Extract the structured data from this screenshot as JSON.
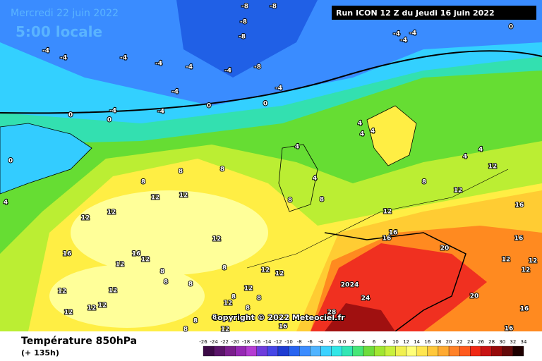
{
  "header": {
    "date": "Mercredi 22 juin 2022",
    "time": "5:00 locale",
    "run": "Run ICON 12 Z du Jeudi 16 juin 2022"
  },
  "footer": {
    "variable": "Température 850hPa",
    "lead": "(+ 135h)",
    "copyright": "Copyright © 2022 Meteociel.fr"
  },
  "colorbar": {
    "ticks": [
      "-26",
      "-24",
      "-22",
      "-20",
      "-18",
      "-16",
      "-14",
      "-12",
      "-10",
      "-8",
      "-6",
      "-4",
      "-2",
      "0.0",
      "2",
      "4",
      "6",
      "8",
      "10",
      "12",
      "14",
      "16",
      "18",
      "20",
      "22",
      "24",
      "26",
      "28",
      "30",
      "32",
      "34"
    ],
    "colors": [
      "#3c0a46",
      "#5a1469",
      "#7a1e8c",
      "#9628b4",
      "#b43cd2",
      "#6e3cdc",
      "#4646e6",
      "#1e3cd2",
      "#2864f0",
      "#3c8cff",
      "#50b4ff",
      "#3cd2ff",
      "#32e6e6",
      "#32e6b4",
      "#46e678",
      "#6edc3c",
      "#a0e632",
      "#c8f03c",
      "#f0f050",
      "#ffff78",
      "#ffe650",
      "#ffc83c",
      "#ffaa32",
      "#ff8228",
      "#ff5a1e",
      "#f02814",
      "#c81414",
      "#960a0a",
      "#640a0a",
      "#1e0000"
    ]
  },
  "map_labels": [
    "-8",
    "-8",
    "-8",
    "-8",
    "-8",
    "-4",
    "-4",
    "-4",
    "-4",
    "-4",
    "-4",
    "-4",
    "-4",
    "-4",
    "-4",
    "0",
    "0",
    "0",
    "0",
    "0",
    "4",
    "-4",
    "-4",
    "-4",
    "0",
    "4",
    "4",
    "4",
    "4",
    "4",
    "4",
    "4",
    "8",
    "8",
    "8",
    "8",
    "8",
    "12",
    "12",
    "12",
    "12",
    "12",
    "16",
    "16",
    "12",
    "12",
    "8",
    "8",
    "8",
    "8",
    "12",
    "12",
    "12",
    "12",
    "12",
    "12",
    "12",
    "12",
    "8",
    "8",
    "12",
    "8",
    "8",
    "8",
    "12",
    "8",
    "16",
    "12",
    "16",
    "16",
    "20",
    "20",
    "24",
    "24",
    "28",
    "20",
    "16",
    "16",
    "12",
    "12",
    "12",
    "16",
    "16",
    "12",
    "12",
    "8"
  ]
}
